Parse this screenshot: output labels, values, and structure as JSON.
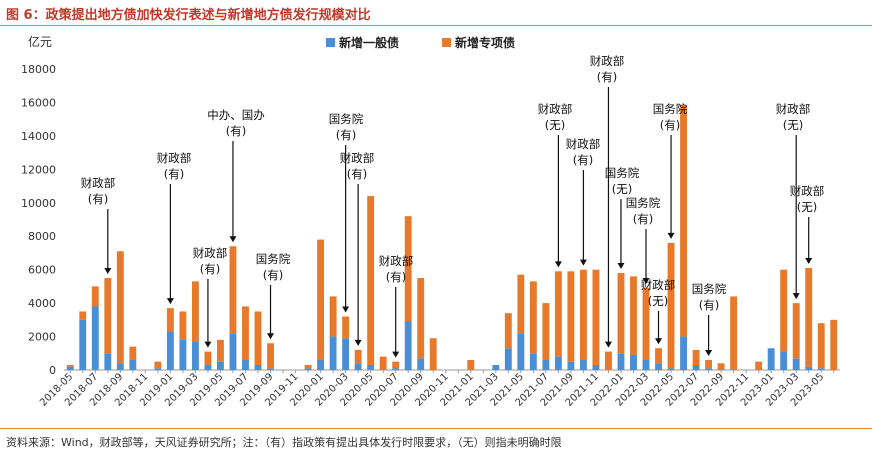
{
  "header": {
    "title": "图 6：政策提出地方债加快发行表述与新增地方债发行规模对比"
  },
  "footer": {
    "source": "资料来源：Wind，财政部等，天风证券研究所；注：（有）指政策有提出具体发行时限要求，（无）则指未明确时限"
  },
  "colors": {
    "general": "#4a8fd6",
    "special": "#e8792a",
    "title": "#c0392b",
    "rule": "#d98a2b"
  },
  "chart_data": {
    "type": "bar",
    "stacked": true,
    "yunit": "亿元",
    "ylim": [
      0,
      18000
    ],
    "yticks": [
      0,
      2000,
      4000,
      6000,
      8000,
      10000,
      12000,
      14000,
      16000,
      18000
    ],
    "grid": false,
    "legend_position": "top-center",
    "categories": [
      "2018-05",
      "2018-06",
      "2018-07",
      "2018-08",
      "2018-09",
      "2018-10",
      "2018-11",
      "2018-12",
      "2019-01",
      "2019-02",
      "2019-03",
      "2019-04",
      "2019-05",
      "2019-06",
      "2019-07",
      "2019-08",
      "2019-09",
      "2019-10",
      "2019-11",
      "2019-12",
      "2020-01",
      "2020-02",
      "2020-03",
      "2020-04",
      "2020-05",
      "2020-06",
      "2020-07",
      "2020-08",
      "2020-09",
      "2020-10",
      "2020-11",
      "2020-12",
      "2021-01",
      "2021-02",
      "2021-03",
      "2021-04",
      "2021-05",
      "2021-06",
      "2021-07",
      "2021-08",
      "2021-09",
      "2021-10",
      "2021-11",
      "2021-12",
      "2022-01",
      "2022-02",
      "2022-03",
      "2022-04",
      "2022-05",
      "2022-06",
      "2022-07",
      "2022-08",
      "2022-09",
      "2022-10",
      "2022-11",
      "2022-12",
      "2023-01",
      "2023-02",
      "2023-03",
      "2023-04",
      "2023-05",
      "2023-06"
    ],
    "tick_labels": [
      "2018-05",
      "",
      "2018-07",
      "",
      "2018-09",
      "",
      "2018-11",
      "",
      "2019-01",
      "",
      "2019-03",
      "",
      "2019-05",
      "",
      "2019-07",
      "",
      "2019-09",
      "",
      "2019-11",
      "",
      "2020-01",
      "",
      "2020-03",
      "",
      "2020-05",
      "",
      "2020-07",
      "",
      "2020-09",
      "",
      "2020-11",
      "",
      "2021-01",
      "",
      "2021-03",
      "",
      "2021-05",
      "",
      "2021-07",
      "",
      "2021-09",
      "",
      "2021-11",
      "",
      "2022-01",
      "",
      "2022-03",
      "",
      "2022-05",
      "",
      "2022-07",
      "",
      "2022-09",
      "",
      "2022-11",
      "",
      "2023-01",
      "",
      "2023-03",
      "",
      "2023-05",
      ""
    ],
    "series": [
      {
        "name": "新增一般债",
        "values": [
          200,
          3000,
          3800,
          1000,
          400,
          600,
          0,
          100,
          2300,
          1800,
          1700,
          300,
          500,
          2200,
          600,
          300,
          100,
          0,
          0,
          100,
          600,
          2000,
          1900,
          400,
          300,
          0,
          100,
          2900,
          700,
          0,
          0,
          0,
          0,
          0,
          300,
          1300,
          2200,
          1000,
          600,
          800,
          500,
          600,
          300,
          0,
          1000,
          900,
          600,
          400,
          100,
          2000,
          300,
          100,
          0,
          0,
          0,
          0,
          1300,
          1100,
          700,
          200,
          100,
          0
        ]
      },
      {
        "name": "新增专项债",
        "values": [
          100,
          500,
          1200,
          4500,
          6700,
          800,
          0,
          400,
          1400,
          1700,
          3600,
          800,
          1300,
          5200,
          3200,
          3200,
          1500,
          0,
          0,
          200,
          7200,
          2400,
          1300,
          800,
          10100,
          800,
          400,
          6300,
          4800,
          1900,
          0,
          0,
          600,
          0,
          0,
          2100,
          3500,
          4300,
          3400,
          5100,
          5400,
          5400,
          5700,
          1100,
          4800,
          4700,
          4300,
          900,
          7500,
          13800,
          900,
          500,
          400,
          4400,
          0,
          500,
          0,
          4900,
          3300,
          5900,
          2700,
          3000
        ]
      }
    ],
    "annotations": [
      {
        "lines": [
          "财政部",
          "(有)"
        ],
        "month": "2018-08"
      },
      {
        "lines": [
          "财政部",
          "(有)"
        ],
        "month": "2019-01"
      },
      {
        "lines": [
          "财政部",
          "(有)"
        ],
        "month": "2019-04"
      },
      {
        "lines": [
          "中办、国办",
          "(有)"
        ],
        "month": "2019-06"
      },
      {
        "lines": [
          "国务院",
          "(有)"
        ],
        "month": "2019-09"
      },
      {
        "lines": [
          "国务院",
          "(有)"
        ],
        "month": "2020-03"
      },
      {
        "lines": [
          "财政部",
          "(有)"
        ],
        "month": "2020-04"
      },
      {
        "lines": [
          "财政部",
          "(有)"
        ],
        "month": "2020-07"
      },
      {
        "lines": [
          "财政部",
          "(无)"
        ],
        "month": "2021-08"
      },
      {
        "lines": [
          "财政部",
          "(有)"
        ],
        "month": "2021-10"
      },
      {
        "lines": [
          "财政部",
          "(有)"
        ],
        "month": "2021-12"
      },
      {
        "lines": [
          "国务院",
          "(无)"
        ],
        "month": "2022-01"
      },
      {
        "lines": [
          "国务院",
          "(有)"
        ],
        "month": "2022-03"
      },
      {
        "lines": [
          "财政部",
          "(无)"
        ],
        "month": "2022-04"
      },
      {
        "lines": [
          "国务院",
          "(有)"
        ],
        "month": "2022-05"
      },
      {
        "lines": [
          "国务院",
          "(有)"
        ],
        "month": "2022-08"
      },
      {
        "lines": [
          "财政部",
          "(无)"
        ],
        "month": "2023-03"
      },
      {
        "lines": [
          "财政部",
          "(无)"
        ],
        "month": "2023-04"
      }
    ]
  }
}
